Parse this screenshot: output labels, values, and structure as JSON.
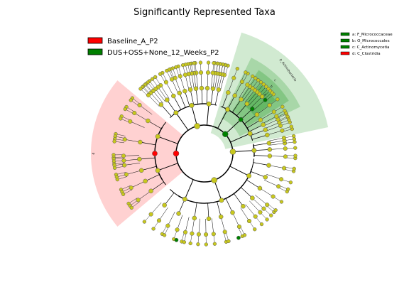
{
  "title": "Significantly Represented Taxa",
  "legend": [
    {
      "label": "Baseline_A_P2",
      "color": "#ff0000"
    },
    {
      "label": "DUS+OSS+None_12_Weeks_P2",
      "color": "#008000"
    }
  ],
  "clade_key": [
    {
      "label": "a: F_Micrococcaceae",
      "color": "#008000"
    },
    {
      "label": "b: O_Micrococcales",
      "color": "#008000"
    },
    {
      "label": "c: C_Actinomycetia",
      "color": "#008000"
    },
    {
      "label": "d: C_Clostridia",
      "color": "#ff0000"
    }
  ],
  "sector_labels": {
    "d": "d",
    "p_actinobacteria": "p_Actinobacteria",
    "c": "c",
    "b": "b",
    "a": "a"
  },
  "colors": {
    "node": "#c8c81e",
    "node_stroke": "#555555",
    "red_sector": "#ffb3b3",
    "green_sector": "#2e9e2e",
    "enriched_red": "#ff0000",
    "enriched_green": "#008000"
  }
}
